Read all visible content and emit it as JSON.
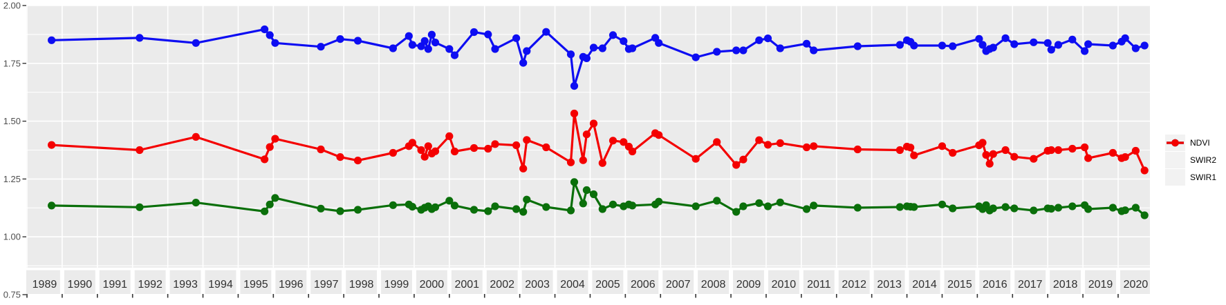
{
  "figure": {
    "background": "#ffffff",
    "panel_background": "#ebebeb",
    "grid_color": "#ffffff",
    "tick_color": "#333333",
    "y_label_color": "#4d4d4d",
    "x_label_color": "#303030"
  },
  "y_axis": {
    "tick_labels": [
      "2.00",
      "1.75",
      "1.50",
      "1.25",
      "1.00",
      "0.75"
    ],
    "tick_values": [
      2.0,
      1.75,
      1.5,
      1.25,
      1.0,
      0.75
    ]
  },
  "x_axis": {
    "tick_labels": [
      "1989",
      "1990",
      "1991",
      "1992",
      "1993",
      "1994",
      "1995",
      "1996",
      "1997",
      "1998",
      "1999",
      "2000",
      "2001",
      "2002",
      "2003",
      "2004",
      "2005",
      "2006",
      "2007",
      "2008",
      "2009",
      "2010",
      "2011",
      "2012",
      "2013",
      "2014",
      "2015",
      "2016",
      "2017",
      "2018",
      "2019",
      "2020"
    ]
  },
  "legend": {
    "items": [
      {
        "label": "NDVI",
        "color": "#0d0df2"
      },
      {
        "label": "SWIR2",
        "color": "#0a6f0a"
      },
      {
        "label": "SWIR1",
        "color": "#f40000"
      }
    ]
  },
  "chart_data": {
    "type": "line",
    "title": "",
    "xlabel": "",
    "ylabel": "",
    "grid": true,
    "legend_position": "right",
    "marker": "point",
    "point_radius": 5.6,
    "line_width": 3.2,
    "xlim": [
      1988.98,
      2020.91
    ],
    "ylim": [
      0.75,
      2.0
    ],
    "y_major_step": 0.25,
    "y_minor_step": 0.125,
    "x_grid_step_years": 1,
    "x": [
      1989.7,
      1992.2,
      1993.8,
      1995.75,
      1995.9,
      1996.05,
      1997.35,
      1997.9,
      1998.4,
      1999.4,
      1999.85,
      1999.95,
      2000.2,
      2000.3,
      2000.4,
      2000.5,
      2000.6,
      2001.0,
      2001.15,
      2001.7,
      2002.1,
      2002.3,
      2002.9,
      2003.1,
      2003.2,
      2003.75,
      2004.45,
      2004.55,
      2004.8,
      2004.9,
      2005.1,
      2005.35,
      2005.65,
      2005.95,
      2006.1,
      2006.2,
      2006.85,
      2006.95,
      2008.0,
      2008.6,
      2009.15,
      2009.35,
      2009.8,
      2010.05,
      2010.4,
      2011.15,
      2011.35,
      2012.6,
      2013.8,
      2014.0,
      2014.1,
      2014.2,
      2015.0,
      2015.3,
      2016.05,
      2016.15,
      2016.25,
      2016.35,
      2016.45,
      2016.8,
      2017.05,
      2017.6,
      2018.0,
      2018.1,
      2018.3,
      2018.7,
      2019.05,
      2019.15,
      2019.85,
      2020.1,
      2020.2,
      2020.5,
      2020.75
    ],
    "series": [
      {
        "name": "NDVI",
        "color": "#0d0df2",
        "values": [
          1.85,
          1.86,
          1.838,
          1.897,
          1.872,
          1.838,
          1.822,
          1.855,
          1.848,
          1.815,
          1.868,
          1.83,
          1.824,
          1.847,
          1.812,
          1.874,
          1.84,
          1.812,
          1.785,
          1.885,
          1.875,
          1.812,
          1.859,
          1.752,
          1.803,
          1.886,
          1.789,
          1.652,
          1.778,
          1.772,
          1.818,
          1.815,
          1.872,
          1.846,
          1.812,
          1.815,
          1.86,
          1.838,
          1.776,
          1.8,
          1.806,
          1.806,
          1.85,
          1.858,
          1.815,
          1.835,
          1.806,
          1.824,
          1.83,
          1.85,
          1.843,
          1.827,
          1.827,
          1.824,
          1.856,
          1.83,
          1.803,
          1.812,
          1.818,
          1.859,
          1.833,
          1.841,
          1.838,
          1.809,
          1.83,
          1.853,
          1.803,
          1.833,
          1.827,
          1.844,
          1.859,
          1.815,
          1.827
        ]
      },
      {
        "name": "SWIR2",
        "color": "#0a6f0a",
        "values": [
          1.135,
          1.128,
          1.148,
          1.11,
          1.14,
          1.168,
          1.122,
          1.111,
          1.117,
          1.137,
          1.14,
          1.13,
          1.117,
          1.126,
          1.132,
          1.12,
          1.128,
          1.156,
          1.135,
          1.117,
          1.111,
          1.132,
          1.12,
          1.108,
          1.161,
          1.129,
          1.114,
          1.237,
          1.144,
          1.202,
          1.184,
          1.12,
          1.14,
          1.132,
          1.14,
          1.135,
          1.14,
          1.152,
          1.132,
          1.156,
          1.108,
          1.132,
          1.146,
          1.132,
          1.149,
          1.12,
          1.135,
          1.126,
          1.129,
          1.132,
          1.13,
          1.129,
          1.14,
          1.123,
          1.132,
          1.12,
          1.137,
          1.114,
          1.123,
          1.129,
          1.123,
          1.114,
          1.123,
          1.121,
          1.126,
          1.132,
          1.137,
          1.12,
          1.126,
          1.111,
          1.115,
          1.126,
          1.093
        ]
      },
      {
        "name": "SWIR1",
        "color": "#f40000",
        "values": [
          1.397,
          1.375,
          1.432,
          1.335,
          1.388,
          1.424,
          1.378,
          1.345,
          1.33,
          1.363,
          1.392,
          1.407,
          1.375,
          1.346,
          1.392,
          1.36,
          1.37,
          1.435,
          1.369,
          1.384,
          1.381,
          1.401,
          1.396,
          1.295,
          1.419,
          1.387,
          1.322,
          1.533,
          1.331,
          1.443,
          1.49,
          1.319,
          1.416,
          1.41,
          1.39,
          1.369,
          1.448,
          1.44,
          1.337,
          1.41,
          1.311,
          1.334,
          1.418,
          1.398,
          1.405,
          1.387,
          1.392,
          1.378,
          1.375,
          1.39,
          1.386,
          1.352,
          1.392,
          1.363,
          1.396,
          1.407,
          1.354,
          1.316,
          1.358,
          1.375,
          1.346,
          1.337,
          1.372,
          1.375,
          1.375,
          1.381,
          1.387,
          1.34,
          1.363,
          1.34,
          1.345,
          1.372,
          1.287
        ]
      }
    ]
  }
}
